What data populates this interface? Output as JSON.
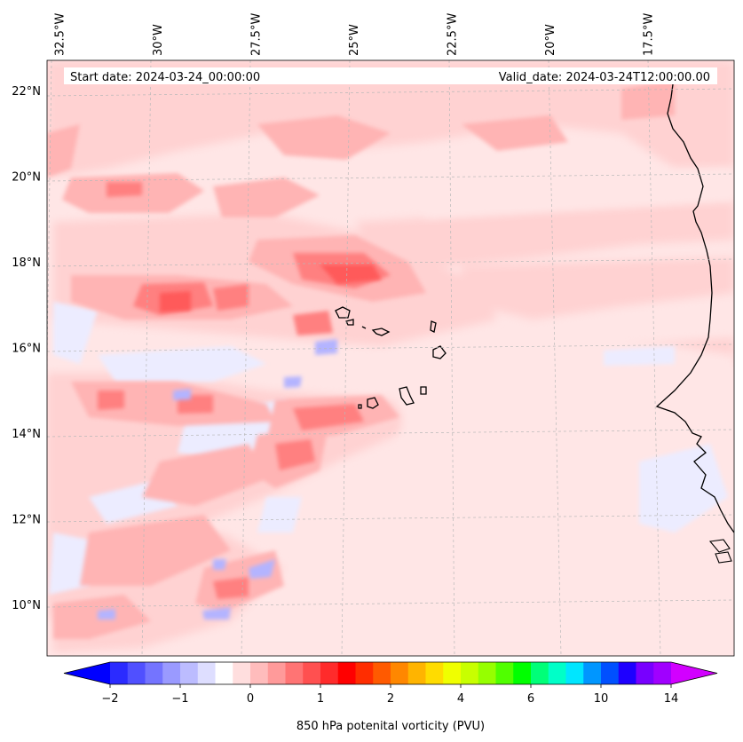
{
  "map": {
    "type": "contour map",
    "title_left": "Start date: 2024-03-24_00:00:00",
    "title_right": "Valid_date: 2024-03-24T12:00:00.00",
    "variable": "850 hPa potenital vorticity (PVU)",
    "lon_labels": [
      "32.5°W",
      "30°W",
      "27.5°W",
      "25°W",
      "22.5°W",
      "20°W",
      "17.5°W"
    ],
    "lat_labels": [
      "22°N",
      "20°N",
      "18°N",
      "16°N",
      "14°N",
      "12°N",
      "10°N"
    ],
    "lon_values": [
      -32.5,
      -30,
      -27.5,
      -25,
      -22.5,
      -20,
      -17.5
    ],
    "lat_values": [
      22,
      20,
      18,
      16,
      14,
      12,
      10
    ],
    "extent": {
      "lon_min": -32.8,
      "lon_max": -15.3,
      "lat_min": 8.8,
      "lat_max": 22.7
    }
  },
  "colorbar": {
    "levels": [
      -2,
      -1.75,
      -1.5,
      -1.25,
      -1,
      -0.75,
      -0.5,
      -0.25,
      0,
      0.25,
      0.5,
      0.75,
      1,
      1.25,
      1.5,
      1.75,
      2,
      2.5,
      3,
      3.5,
      4,
      4.5,
      5,
      5.5,
      6,
      7,
      8,
      9,
      10,
      11,
      12,
      13,
      14
    ],
    "tick_labels": [
      "−2",
      "−1",
      "0",
      "1",
      "2",
      "4",
      "6",
      "10",
      "14"
    ],
    "tick_values": [
      -2,
      -1,
      0,
      1,
      2,
      4,
      6,
      10,
      14
    ],
    "colors": [
      "#0000ff",
      "#2b2bff",
      "#5050ff",
      "#7474ff",
      "#9a9aff",
      "#bcbcff",
      "#dedeff",
      "#ffffff",
      "#ffdede",
      "#ffbcbc",
      "#ff9a9a",
      "#ff7474",
      "#ff5050",
      "#ff2b2b",
      "#ff0000",
      "#ff2d00",
      "#ff5a00",
      "#ff8700",
      "#ffb400",
      "#ffdc00",
      "#f0ff00",
      "#c8ff00",
      "#96ff00",
      "#50ff00",
      "#00ff00",
      "#00ff78",
      "#00ffc8",
      "#00e6ff",
      "#0096ff",
      "#0050ff",
      "#1e00ff",
      "#7800ff",
      "#a000ff",
      "#d200ff"
    ],
    "under_color": "#0000ff",
    "over_color": "#d200ff"
  }
}
